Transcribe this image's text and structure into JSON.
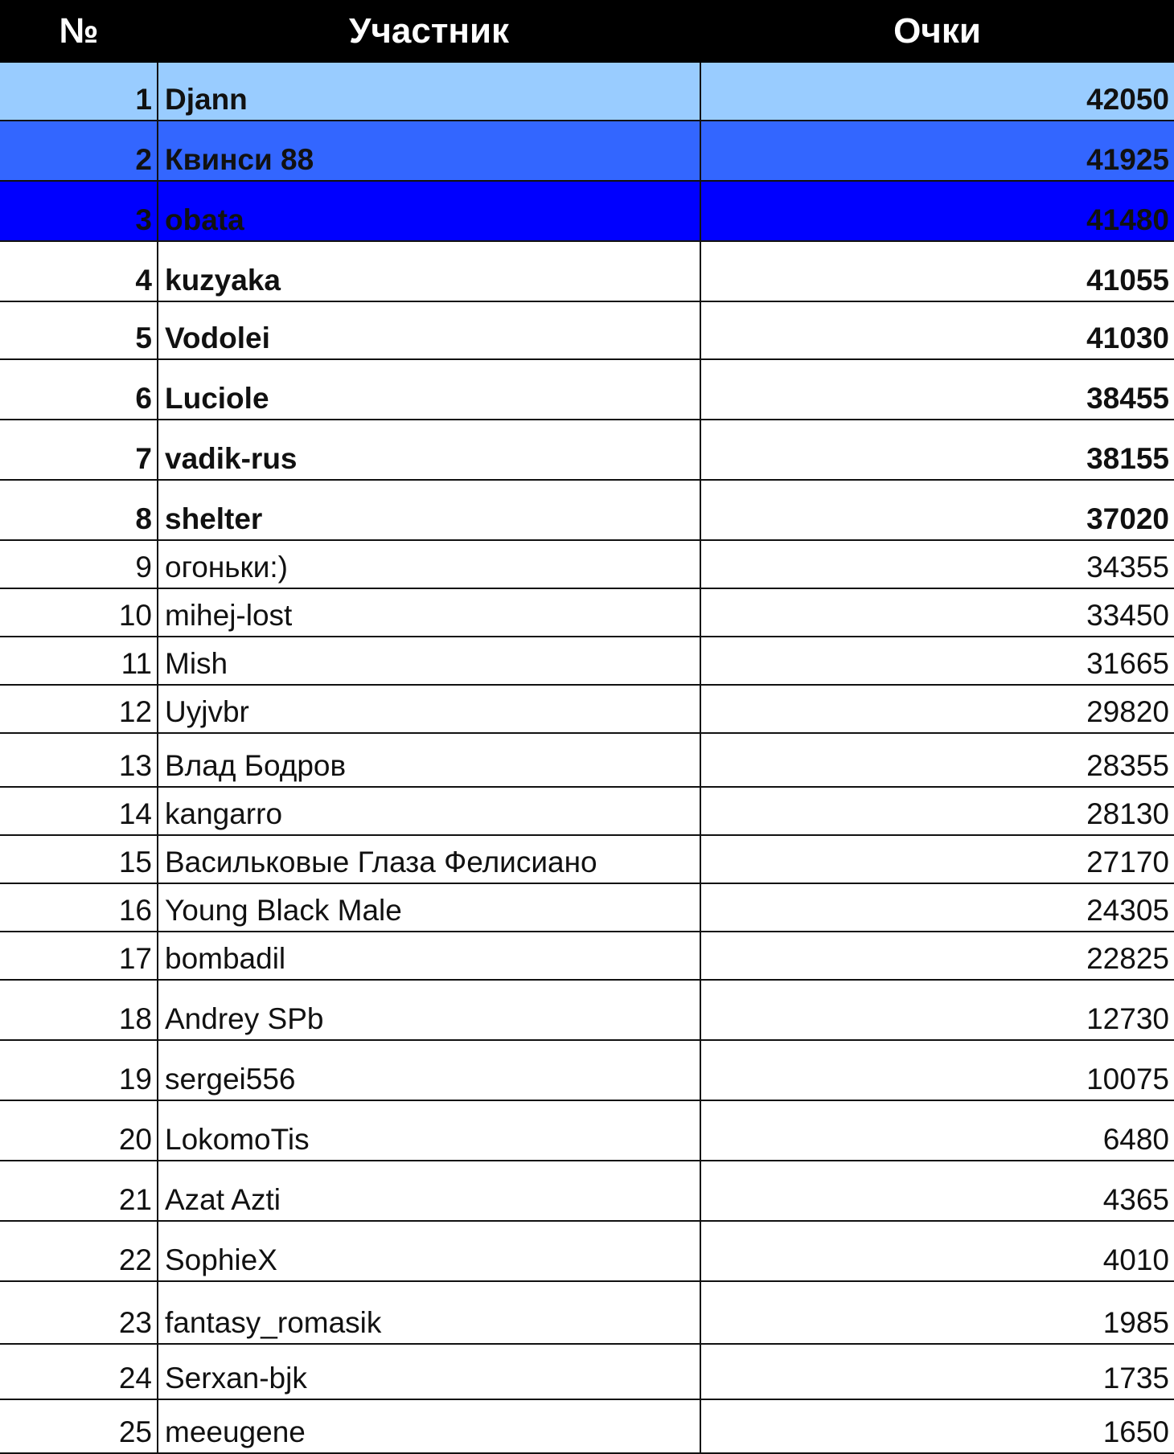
{
  "header": {
    "num": "№",
    "participant": "Участник",
    "points": "Очки"
  },
  "highlight_colors": {
    "1": "#99CCFF",
    "2": "#3366FF",
    "3": "#0000FF"
  },
  "rows": [
    {
      "num": "1",
      "name": "Djann",
      "points": "42050",
      "bold": true
    },
    {
      "num": "2",
      "name": "Квинси 88",
      "points": "41925",
      "bold": true
    },
    {
      "num": "3",
      "name": "obata",
      "points": "41480",
      "bold": true
    },
    {
      "num": "4",
      "name": "kuzyaka",
      "points": "41055",
      "bold": true
    },
    {
      "num": "5",
      "name": "Vodolei",
      "points": "41030",
      "bold": true
    },
    {
      "num": "6",
      "name": "Luciole",
      "points": "38455",
      "bold": true
    },
    {
      "num": "7",
      "name": "vadik-rus",
      "points": "38155",
      "bold": true
    },
    {
      "num": "8",
      "name": "shelter",
      "points": "37020",
      "bold": true
    },
    {
      "num": "9",
      "name": "огоньки:)",
      "points": "34355",
      "bold": false
    },
    {
      "num": "10",
      "name": "mihej-lost",
      "points": "33450",
      "bold": false
    },
    {
      "num": "11",
      "name": "Mish",
      "points": "31665",
      "bold": false
    },
    {
      "num": "12",
      "name": "Uyjvbr",
      "points": "29820",
      "bold": false
    },
    {
      "num": "13",
      "name": "Влад Бодров",
      "points": "28355",
      "bold": false
    },
    {
      "num": "14",
      "name": "kangarro",
      "points": "28130",
      "bold": false
    },
    {
      "num": "15",
      "name": "Васильковые Глаза Фелисиано",
      "points": "27170",
      "bold": false
    },
    {
      "num": "16",
      "name": "Young Black Male",
      "points": "24305",
      "bold": false
    },
    {
      "num": "17",
      "name": "bombadil",
      "points": "22825",
      "bold": false
    },
    {
      "num": "18",
      "name": "Andrey SPb",
      "points": "12730",
      "bold": false
    },
    {
      "num": "19",
      "name": "sergei556",
      "points": "10075",
      "bold": false
    },
    {
      "num": "20",
      "name": "LokomoTis",
      "points": "6480",
      "bold": false
    },
    {
      "num": "21",
      "name": "Azat Azti",
      "points": "4365",
      "bold": false
    },
    {
      "num": "22",
      "name": "SophieX",
      "points": "4010",
      "bold": false
    },
    {
      "num": "23",
      "name": "fantasy_romasik",
      "points": "1985",
      "bold": false
    },
    {
      "num": "24",
      "name": "Serxan-bjk",
      "points": "1735",
      "bold": false
    },
    {
      "num": "25",
      "name": "meeugene",
      "points": "1650",
      "bold": false
    }
  ]
}
